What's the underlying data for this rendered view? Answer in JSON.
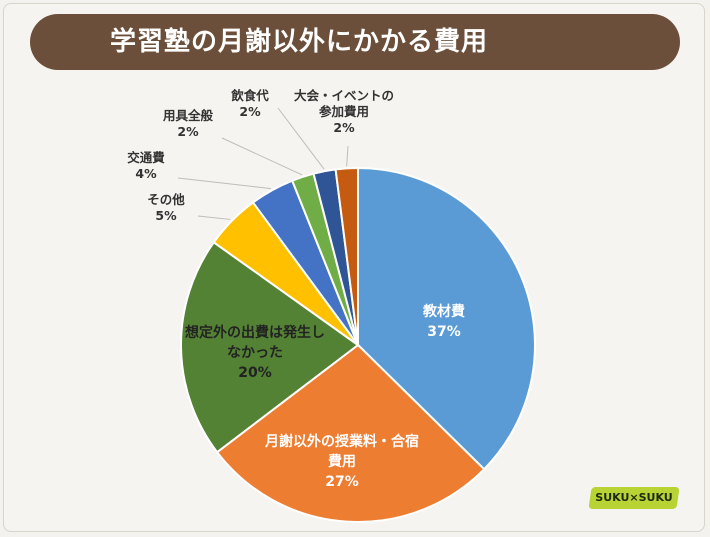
{
  "header": {
    "title": "学習塾の月謝以外にかかる費用"
  },
  "brand": {
    "logo_text": "SUKU×SUKU"
  },
  "chart_data": {
    "type": "pie",
    "title": "学習塾の月謝以外にかかる費用",
    "unit": "%",
    "slices": [
      {
        "name": "教材費",
        "value": 37,
        "color": "#5b9bd5"
      },
      {
        "name": "月謝以外の授業料・合宿費用",
        "value": 27,
        "color": "#ed7d31"
      },
      {
        "name": "想定外の出費は発生しなかった",
        "value": 20,
        "color": "#548235"
      },
      {
        "name": "その他",
        "value": 5,
        "color": "#ffc000"
      },
      {
        "name": "交通費",
        "value": 4,
        "color": "#4472c4"
      },
      {
        "name": "用具全般",
        "value": 2,
        "color": "#70ad47"
      },
      {
        "name": "飲食代",
        "value": 2,
        "color": "#2f5597"
      },
      {
        "name": "大会・イベントの参加費用",
        "value": 2,
        "color": "#c55a11"
      }
    ],
    "labels": [
      {
        "lines": [
          "教材費"
        ],
        "pct": "37%"
      },
      {
        "lines": [
          "月謝以外の授業料・合宿",
          "費用"
        ],
        "pct": "27%"
      },
      {
        "lines": [
          "想定外の出費は発生し",
          "なかった"
        ],
        "pct": "20%"
      },
      {
        "lines": [
          "その他"
        ],
        "pct": "5%"
      },
      {
        "lines": [
          "交通費"
        ],
        "pct": "4%"
      },
      {
        "lines": [
          "用具全般"
        ],
        "pct": "2%"
      },
      {
        "lines": [
          "飲食代"
        ],
        "pct": "2%"
      },
      {
        "lines": [
          "大会・イベントの",
          "参加費用"
        ],
        "pct": "2%"
      }
    ]
  }
}
